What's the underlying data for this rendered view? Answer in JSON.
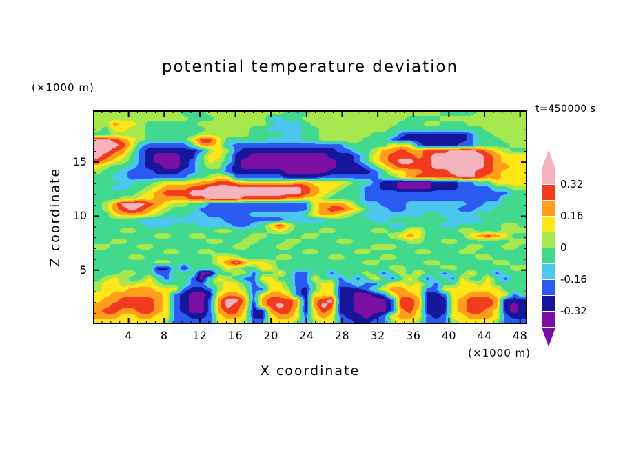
{
  "chart_data": {
    "type": "heatmap",
    "title": "potential temperature deviation",
    "xlabel": "X coordinate",
    "ylabel": "Z coordinate",
    "x_unit_label": "(×1000 m)",
    "y_unit_label": "(×1000 m)",
    "time_label": "t=450000 s",
    "x_range": [
      0,
      48.8
    ],
    "z_range": [
      0,
      19.8
    ],
    "x_ticks": [
      4,
      8,
      12,
      16,
      20,
      24,
      28,
      32,
      36,
      40,
      44,
      48
    ],
    "x_minor_step": 1,
    "z_ticks": [
      5,
      10,
      15
    ],
    "z_minor_step": 1,
    "grid": "off",
    "frame_color": "#000000",
    "colorbar": {
      "labels": [
        "0.32",
        "0.16",
        "0",
        "-0.16",
        "-0.32"
      ],
      "levels": [
        -0.4,
        -0.32,
        -0.24,
        -0.16,
        -0.08,
        0,
        0.08,
        0.16,
        0.24,
        0.32,
        0.4
      ],
      "colors_low_to_high": [
        "#7a0fa2",
        "#16169b",
        "#2a5af0",
        "#4cc8f0",
        "#41d98d",
        "#a8e84f",
        "#ffe619",
        "#ff9d1c",
        "#f13a1e",
        "#f4b3bf"
      ],
      "arrow_high_color": "#f4b3bf",
      "arrow_low_color": "#7a0fa2"
    },
    "field": {
      "encoding": "rows listed from z-top to z-bottom, 50 columns spanning x-range; each digit is a class index into colors_low_to_high; class center value = (index-4.5)*0.08",
      "rows": [
        "55555555554445555555554445555555555555554444555555",
        "55555555555444555555334455555555555544445555555555",
        "55766544444455555555433345555555555444554445555555",
        "54665544444445555544333344555555554444444444455555",
        "44555544444455555544443344555555444211111112445555",
        "99876544444688644444333344555554442111111112444555",
        "99986322222477632222222222222444446662111122444455",
        "99875211111125652111111111112244577877888999876544",
        "98764210001146641100000000011124678887899999987666",
        "87654210001246541000000000001124678998899999987666",
        "65443211001245521000000000001112467888899999987766",
        "54432221112244421111110000011111246677888999887666",
        "44332222222445662222221111222222244678888899877666",
        "44433445666677887666666776666544211000011122446666",
        "44334456777889999999999987665442211000011122224455",
        "44444567888999999999999987654442222222222222222244",
        "44455667777889999888887766544442222222222222222444",
        "45799987655442222222222226777643322233333332233444",
        "45789876544422222222222226788764332233333322334444",
        "44677765444332222233333346776543333333443333444444",
        "44444333333333322222223333344444334444444333344444",
        "44444433344433332234686444444444443344443344444554",
        "44455444444444554444565444554444554466444455444555",
        "44444445544554444455444455444444445676444446787644",
        "44554444444445544554445544445544444455445544444455",
        "55444554444444445544455444444444555444444445544554",
        "44444444554455444444444455444455444445544455444444",
        "44445544444444665444455444455444455444444444554444",
        "44444445544444679766544444444445544444554444445544",
        "44444441141444465446644444444444445544445544444455",
        "44455442244400445524464224424445424546442446442444",
        "45654464244204654226644226442424642464244264464244",
        "56655665444224566424664224662242246656424466564444",
        "56667776662112566522665214661112467766226666666444",
        "66777777621001677626776216661100126776112667776624",
        "67788887621002799727888717891100002887111678887111",
        "77888887621002798717898717981100002887111678887101",
        "78877887621002788611788616871100002786111678876101",
        "77766776622112677611677626762110126776212667776211",
        "66666666522222666522666525662211225665222566665222"
      ]
    }
  }
}
